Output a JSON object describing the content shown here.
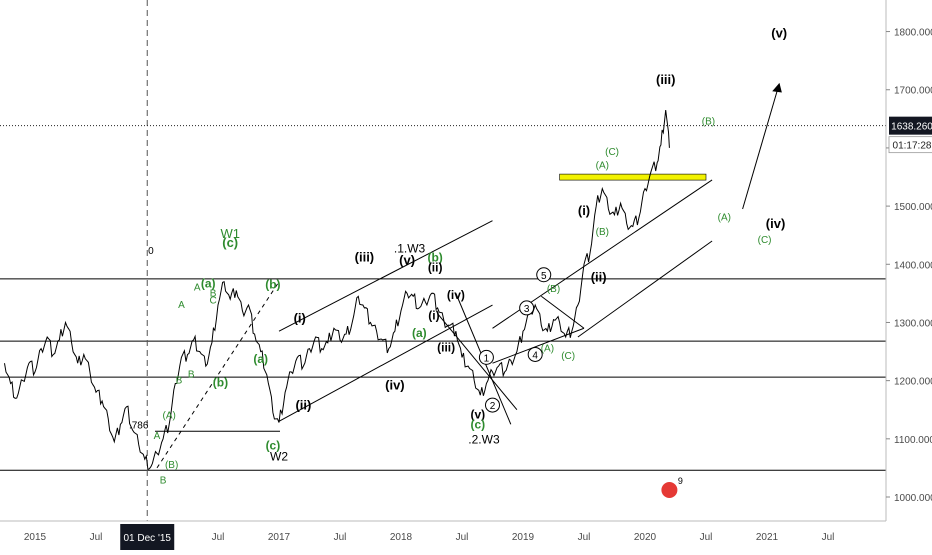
{
  "chart_data": {
    "type": "line",
    "title": "",
    "xlabel": "",
    "ylabel": "",
    "ylim": [
      950,
      1870
    ],
    "xlim": [
      2014.75,
      2021.75
    ],
    "price_ticks": [
      "1000.000",
      "1100.000",
      "1200.000",
      "1300.000",
      "1400.000",
      "1500.000",
      "1600.000",
      "1700.000",
      "1800.000"
    ],
    "price_tick_values": [
      1000,
      1100,
      1200,
      1300,
      1400,
      1500,
      1600,
      1700,
      1800
    ],
    "time_ticks": [
      {
        "label": "2015",
        "t": 2015.0
      },
      {
        "label": "Jul",
        "t": 2015.5
      },
      {
        "label": "Jul",
        "t": 2016.5
      },
      {
        "label": "2017",
        "t": 2017.0
      },
      {
        "label": "Jul",
        "t": 2017.5
      },
      {
        "label": "2018",
        "t": 2018.0
      },
      {
        "label": "Jul",
        "t": 2018.5
      },
      {
        "label": "2019",
        "t": 2019.0
      },
      {
        "label": "Jul",
        "t": 2019.5
      },
      {
        "label": "2020",
        "t": 2020.0
      },
      {
        "label": "Jul",
        "t": 2020.5
      },
      {
        "label": "2021",
        "t": 2021.0
      },
      {
        "label": "Jul",
        "t": 2021.5
      }
    ],
    "crosshair": {
      "date_label": "01 Dec '15",
      "t": 2015.92
    },
    "last_price": {
      "label": "1638.260",
      "value": 1638.26,
      "countdown": "01:17:28"
    },
    "series": [
      {
        "values": [
          [
            2014.75,
            1230
          ],
          [
            2014.8,
            1195
          ],
          [
            2014.85,
            1170
          ],
          [
            2014.9,
            1200
          ],
          [
            2014.95,
            1230
          ],
          [
            2015.0,
            1215
          ],
          [
            2015.05,
            1255
          ],
          [
            2015.1,
            1275
          ],
          [
            2015.15,
            1245
          ],
          [
            2015.2,
            1270
          ],
          [
            2015.25,
            1300
          ],
          [
            2015.3,
            1265
          ],
          [
            2015.35,
            1230
          ],
          [
            2015.4,
            1245
          ],
          [
            2015.45,
            1215
          ],
          [
            2015.5,
            1180
          ],
          [
            2015.55,
            1165
          ],
          [
            2015.6,
            1135
          ],
          [
            2015.65,
            1095
          ],
          [
            2015.7,
            1125
          ],
          [
            2015.75,
            1155
          ],
          [
            2015.8,
            1115
          ],
          [
            2015.85,
            1090
          ],
          [
            2015.9,
            1065
          ],
          [
            2015.95,
            1052
          ],
          [
            2016.0,
            1075
          ],
          [
            2016.05,
            1100
          ],
          [
            2016.1,
            1125
          ],
          [
            2016.15,
            1195
          ],
          [
            2016.2,
            1240
          ],
          [
            2016.25,
            1245
          ],
          [
            2016.3,
            1270
          ],
          [
            2016.35,
            1250
          ],
          [
            2016.4,
            1225
          ],
          [
            2016.45,
            1265
          ],
          [
            2016.5,
            1330
          ],
          [
            2016.55,
            1370
          ],
          [
            2016.6,
            1340
          ],
          [
            2016.65,
            1355
          ],
          [
            2016.7,
            1320
          ],
          [
            2016.75,
            1330
          ],
          [
            2016.8,
            1280
          ],
          [
            2016.85,
            1250
          ],
          [
            2016.9,
            1210
          ],
          [
            2016.95,
            1145
          ],
          [
            2017.0,
            1128
          ],
          [
            2017.05,
            1180
          ],
          [
            2017.1,
            1215
          ],
          [
            2017.15,
            1240
          ],
          [
            2017.2,
            1225
          ],
          [
            2017.25,
            1255
          ],
          [
            2017.3,
            1275
          ],
          [
            2017.35,
            1255
          ],
          [
            2017.4,
            1265
          ],
          [
            2017.45,
            1290
          ],
          [
            2017.5,
            1270
          ],
          [
            2017.55,
            1280
          ],
          [
            2017.6,
            1300
          ],
          [
            2017.65,
            1345
          ],
          [
            2017.7,
            1325
          ],
          [
            2017.75,
            1300
          ],
          [
            2017.8,
            1285
          ],
          [
            2017.85,
            1270
          ],
          [
            2017.9,
            1255
          ],
          [
            2017.95,
            1285
          ],
          [
            2018.0,
            1320
          ],
          [
            2018.05,
            1350
          ],
          [
            2018.1,
            1345
          ],
          [
            2018.15,
            1325
          ],
          [
            2018.2,
            1335
          ],
          [
            2018.25,
            1350
          ],
          [
            2018.3,
            1325
          ],
          [
            2018.35,
            1305
          ],
          [
            2018.4,
            1295
          ],
          [
            2018.45,
            1285
          ],
          [
            2018.5,
            1240
          ],
          [
            2018.55,
            1225
          ],
          [
            2018.6,
            1200
          ],
          [
            2018.65,
            1175
          ],
          [
            2018.7,
            1195
          ],
          [
            2018.75,
            1215
          ],
          [
            2018.8,
            1225
          ],
          [
            2018.85,
            1215
          ],
          [
            2018.9,
            1235
          ],
          [
            2018.95,
            1250
          ],
          [
            2019.0,
            1285
          ],
          [
            2019.05,
            1315
          ],
          [
            2019.1,
            1330
          ],
          [
            2019.15,
            1295
          ],
          [
            2019.2,
            1285
          ],
          [
            2019.25,
            1305
          ],
          [
            2019.3,
            1300
          ],
          [
            2019.35,
            1275
          ],
          [
            2019.4,
            1285
          ],
          [
            2019.45,
            1330
          ],
          [
            2019.5,
            1400
          ],
          [
            2019.55,
            1420
          ],
          [
            2019.6,
            1500
          ],
          [
            2019.65,
            1530
          ],
          [
            2019.7,
            1495
          ],
          [
            2019.75,
            1485
          ],
          [
            2019.8,
            1505
          ],
          [
            2019.85,
            1470
          ],
          [
            2019.9,
            1465
          ],
          [
            2019.95,
            1480
          ],
          [
            2020.0,
            1530
          ],
          [
            2020.05,
            1560
          ],
          [
            2020.1,
            1575
          ],
          [
            2020.13,
            1605
          ],
          [
            2020.17,
            1665
          ],
          [
            2020.2,
            1600
          ]
        ]
      }
    ]
  },
  "labels": {
    "w1": "W1",
    "w2": "W2",
    "w3_1": ".1.W3",
    "w3_2": ".2.W3",
    "fib786": ".786",
    "zero": "0",
    "s_c": "(c)",
    "s_a": "(a)",
    "s_b": "(b)",
    "s_A": "(A)",
    "s_B": "(B)",
    "s_C": "(C)",
    "A": "A",
    "B": "B",
    "C": "C",
    "r_i": "(i)",
    "r_ii": "(ii)",
    "r_iii": "(iii)",
    "r_iv": "(iv)",
    "r_v": "(v)",
    "c1": "1",
    "c2": "2",
    "c3": "3",
    "c4": "4",
    "c5": "5",
    "badge": "9"
  },
  "colors": {
    "green": "#2e8b2e",
    "price": "#000000",
    "highlight": "#f2f200",
    "badge": "#e53935"
  }
}
